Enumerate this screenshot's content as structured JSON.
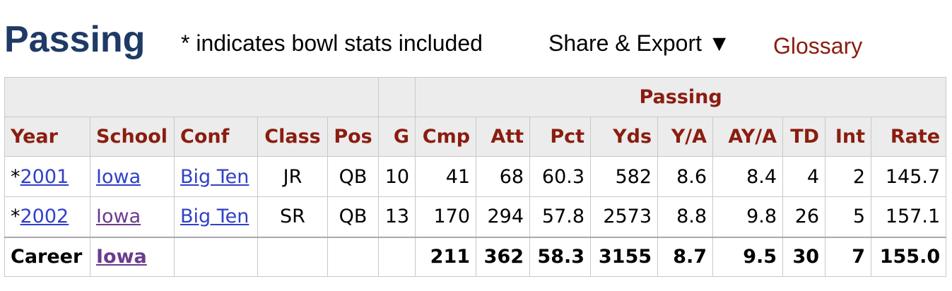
{
  "header": {
    "title": "Passing",
    "note": "* indicates bowl stats included",
    "share": "Share & Export ▼",
    "glossary": "Glossary"
  },
  "table": {
    "group_header": "Passing",
    "columns": [
      "Year",
      "School",
      "Conf",
      "Class",
      "Pos",
      "G",
      "Cmp",
      "Att",
      "Pct",
      "Yds",
      "Y/A",
      "AY/A",
      "TD",
      "Int",
      "Rate"
    ],
    "rows": [
      {
        "marker": "*",
        "cells": [
          "2001",
          "Iowa",
          "Big Ten",
          "JR",
          "QB",
          "10",
          "41",
          "68",
          "60.3",
          "582",
          "8.6",
          "8.4",
          "4",
          "2",
          "145.7"
        ]
      },
      {
        "marker": "*",
        "cells": [
          "2002",
          "Iowa",
          "Big Ten",
          "SR",
          "QB",
          "13",
          "170",
          "294",
          "57.8",
          "2573",
          "8.8",
          "9.8",
          "26",
          "5",
          "157.1"
        ]
      }
    ],
    "footer": {
      "label": "Career",
      "school": "Iowa",
      "values": [
        "211",
        "362",
        "58.3",
        "3155",
        "8.7",
        "9.5",
        "30",
        "7",
        "155.0"
      ]
    }
  }
}
